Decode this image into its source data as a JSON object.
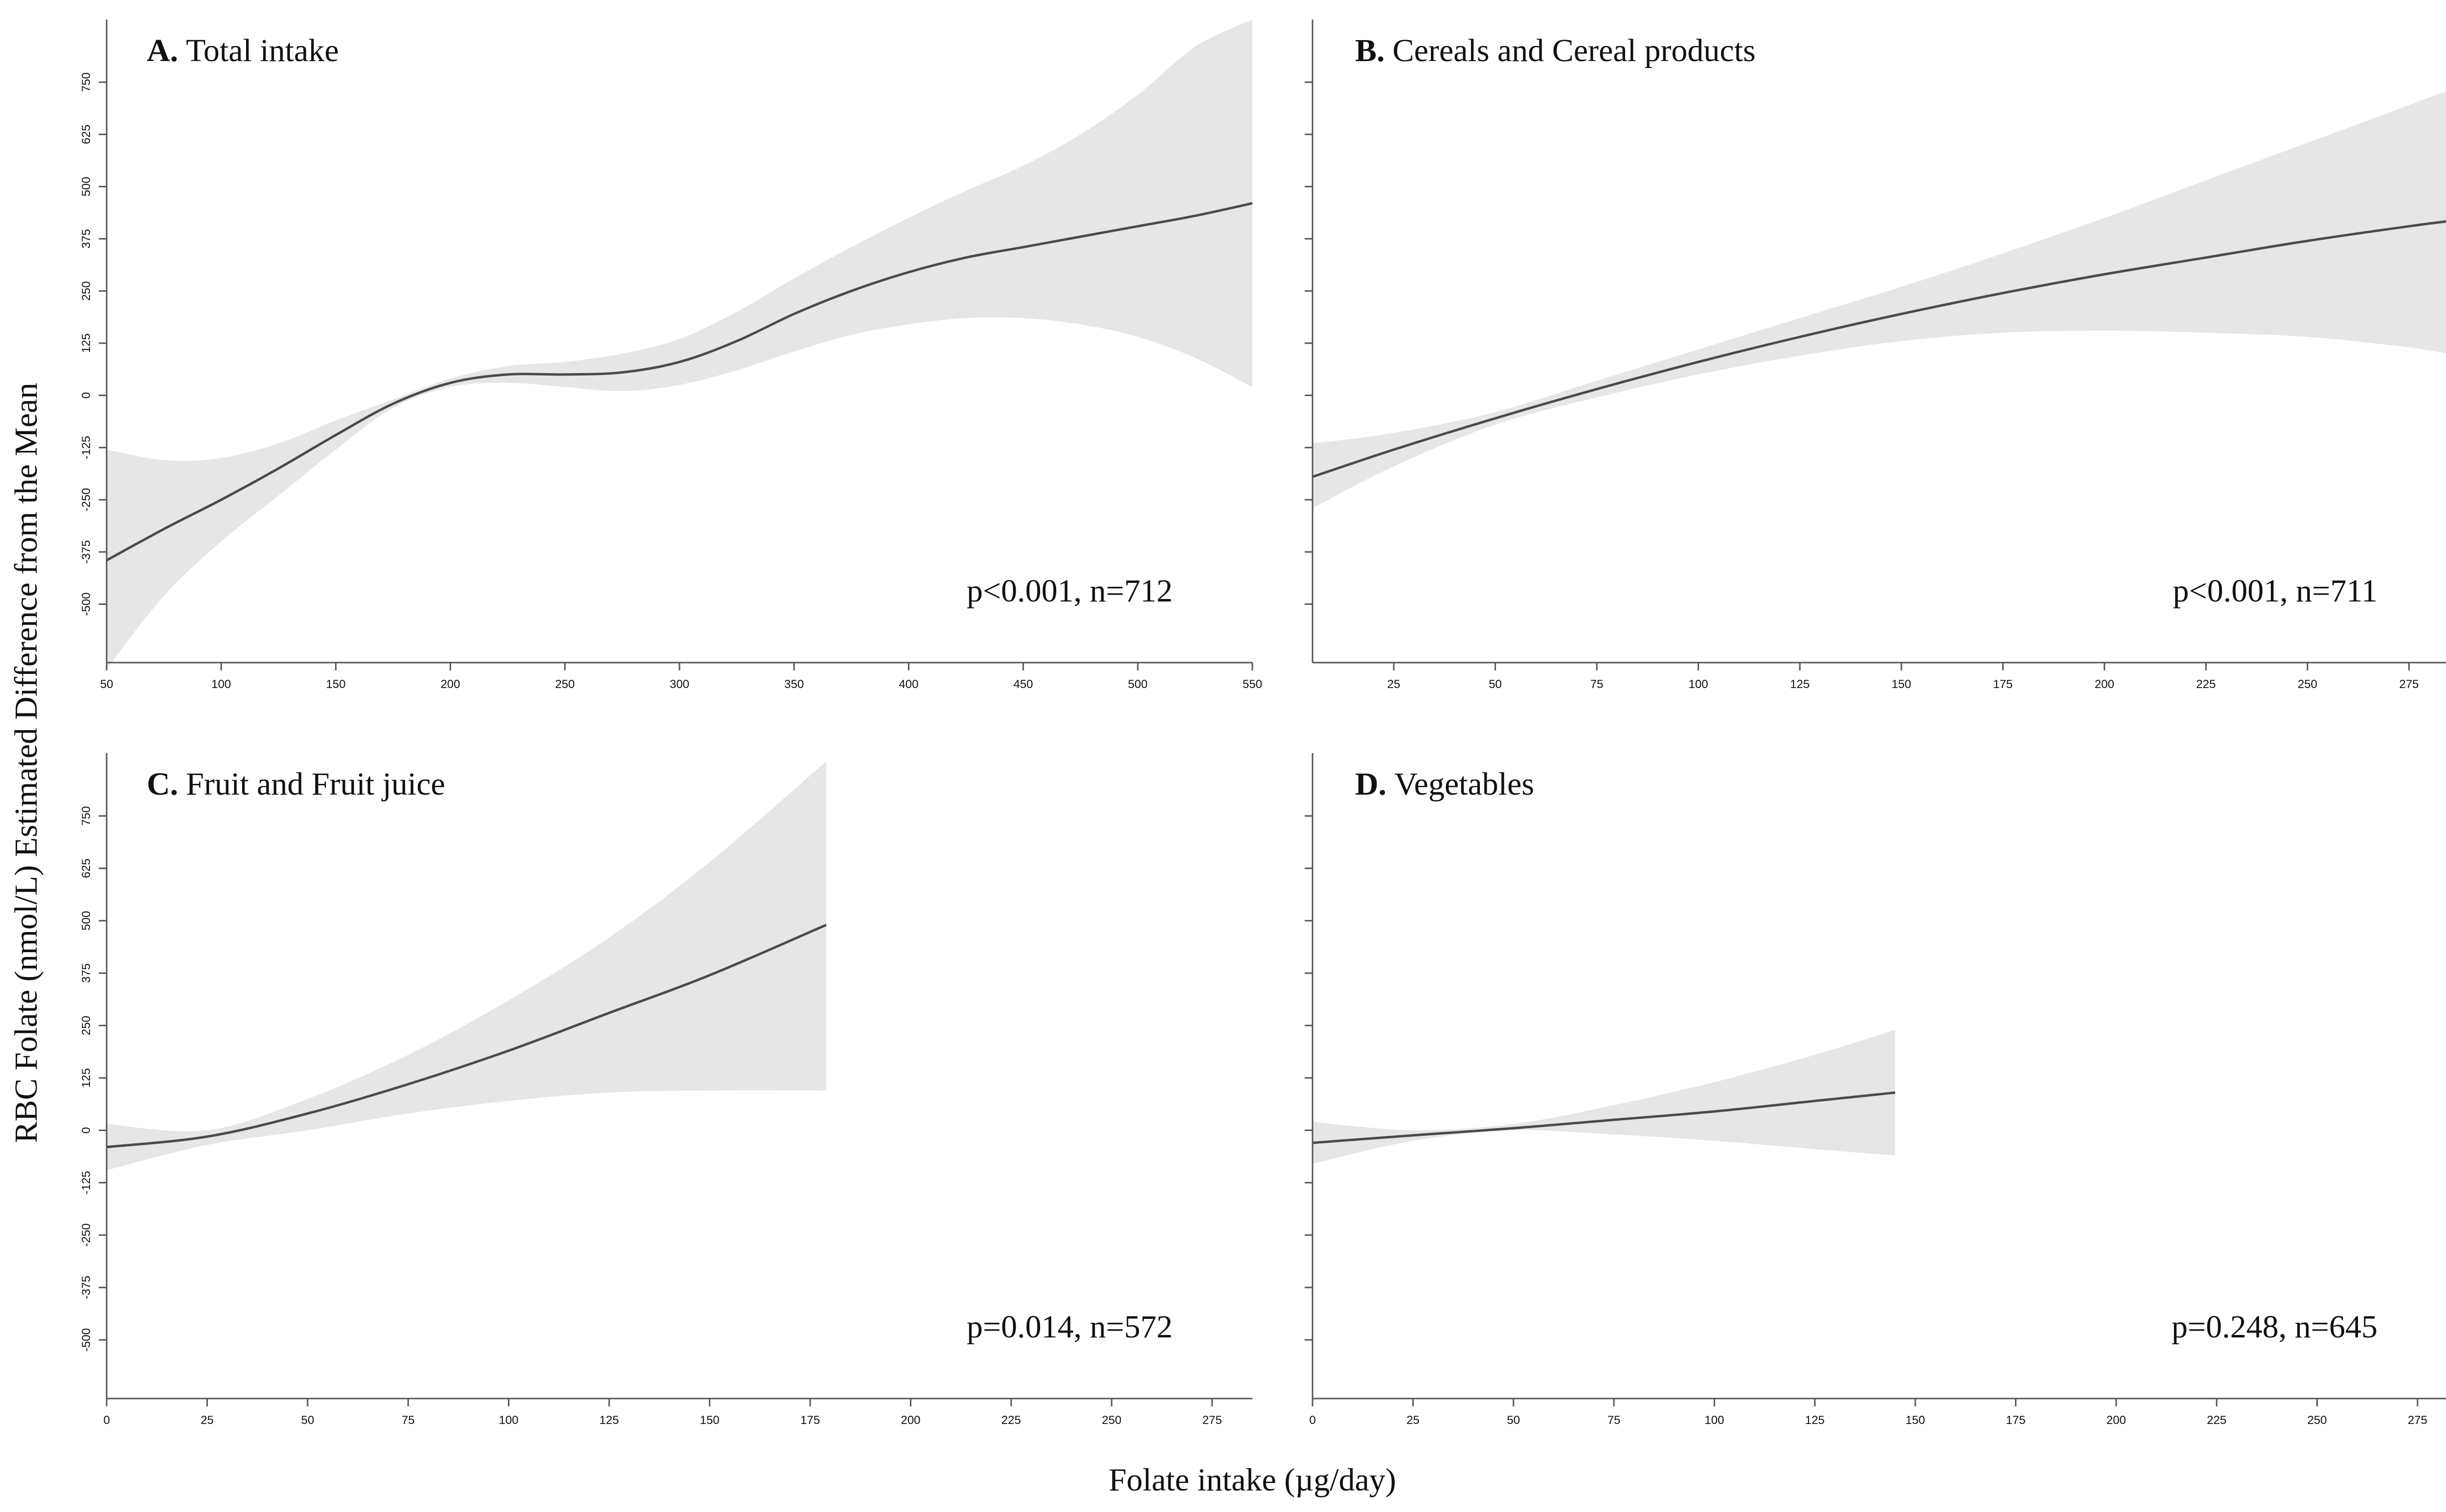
{
  "figure": {
    "ylabel": "RBC Folate (nmol/L) Estimated Difference from the Mean",
    "xlabel": "Folate intake (µg/day)"
  },
  "colors": {
    "band": "#e6e6e6",
    "line": "#4a4a4a",
    "axis": "#555555"
  },
  "chart_data": [
    {
      "type": "line",
      "panel_letter": "A.",
      "title": "Total intake",
      "annotation": "p<0.001, n=712",
      "xlim": [
        50,
        550
      ],
      "ylim": [
        -640,
        900
      ],
      "xticks": [
        50,
        100,
        150,
        200,
        250,
        300,
        350,
        400,
        450,
        500,
        550
      ],
      "yticks": [
        -500,
        -375,
        -250,
        -125,
        0,
        125,
        250,
        375,
        500,
        625,
        750
      ],
      "ytick_labels": true,
      "x": [
        50,
        75,
        100,
        125,
        150,
        175,
        200,
        225,
        250,
        275,
        300,
        325,
        350,
        375,
        400,
        425,
        450,
        475,
        500,
        525,
        550
      ],
      "y": [
        -395,
        -320,
        -250,
        -175,
        -95,
        -20,
        30,
        50,
        50,
        55,
        80,
        130,
        195,
        250,
        295,
        330,
        355,
        380,
        405,
        430,
        460
      ],
      "lower": [
        -655,
        -480,
        -350,
        -240,
        -130,
        -30,
        20,
        30,
        20,
        10,
        25,
        60,
        105,
        145,
        170,
        185,
        185,
        170,
        140,
        90,
        20
      ],
      "upper": [
        -130,
        -155,
        -150,
        -115,
        -60,
        -10,
        40,
        70,
        80,
        100,
        135,
        200,
        280,
        355,
        425,
        490,
        550,
        625,
        720,
        835,
        900
      ]
    },
    {
      "type": "line",
      "panel_letter": "B.",
      "title": "Cereals and Cereal products",
      "annotation": "p<0.001, n=711",
      "xlim": [
        5,
        287
      ],
      "ylim": [
        -640,
        900
      ],
      "xticks": [
        25,
        50,
        75,
        100,
        125,
        150,
        175,
        200,
        225,
        250,
        275
      ],
      "yticks": [
        -500,
        -375,
        -250,
        -125,
        0,
        125,
        250,
        375,
        500,
        625,
        750
      ],
      "ytick_labels": false,
      "x": [
        5,
        25,
        50,
        75,
        100,
        125,
        150,
        175,
        200,
        225,
        250,
        275,
        287
      ],
      "y": [
        -195,
        -130,
        -55,
        15,
        80,
        140,
        195,
        245,
        290,
        330,
        370,
        405,
        420
      ],
      "lower": [
        -270,
        -170,
        -70,
        -5,
        50,
        95,
        130,
        150,
        155,
        150,
        140,
        115,
        95
      ],
      "upper": [
        -115,
        -90,
        -40,
        35,
        110,
        185,
        260,
        340,
        425,
        515,
        605,
        695,
        740
      ]
    },
    {
      "type": "line",
      "panel_letter": "C.",
      "title": "Fruit and Fruit juice",
      "annotation": "p=0.014, n=572",
      "xlim": [
        0,
        285
      ],
      "ylim": [
        -640,
        900
      ],
      "xticks": [
        0,
        25,
        50,
        75,
        100,
        125,
        150,
        175,
        200,
        225,
        250,
        275
      ],
      "yticks": [
        -500,
        -375,
        -250,
        -125,
        0,
        125,
        250,
        375,
        500,
        625,
        750
      ],
      "ytick_labels": true,
      "x": [
        0,
        25,
        50,
        75,
        100,
        125,
        150,
        179
      ],
      "y": [
        -40,
        -15,
        40,
        110,
        190,
        280,
        370,
        490
      ],
      "lower": [
        -95,
        -35,
        0,
        40,
        70,
        90,
        95,
        95
      ],
      "upper": [
        15,
        0,
        75,
        180,
        310,
        460,
        640,
        880
      ]
    },
    {
      "type": "line",
      "panel_letter": "D.",
      "title": "Vegetables",
      "annotation": "p=0.248, n=645",
      "xlim": [
        0,
        285
      ],
      "ylim": [
        -640,
        900
      ],
      "xticks": [
        0,
        25,
        50,
        75,
        100,
        125,
        150,
        175,
        200,
        225,
        250,
        275
      ],
      "yticks": [
        -500,
        -375,
        -250,
        -125,
        0,
        125,
        250,
        375,
        500,
        625,
        750
      ],
      "ytick_labels": false,
      "x": [
        0,
        25,
        50,
        75,
        100,
        125,
        145
      ],
      "y": [
        -30,
        -12,
        5,
        25,
        45,
        70,
        90
      ],
      "lower": [
        -80,
        -25,
        0,
        -10,
        -25,
        -45,
        -60
      ],
      "upper": [
        20,
        0,
        15,
        60,
        115,
        180,
        240
      ]
    }
  ]
}
